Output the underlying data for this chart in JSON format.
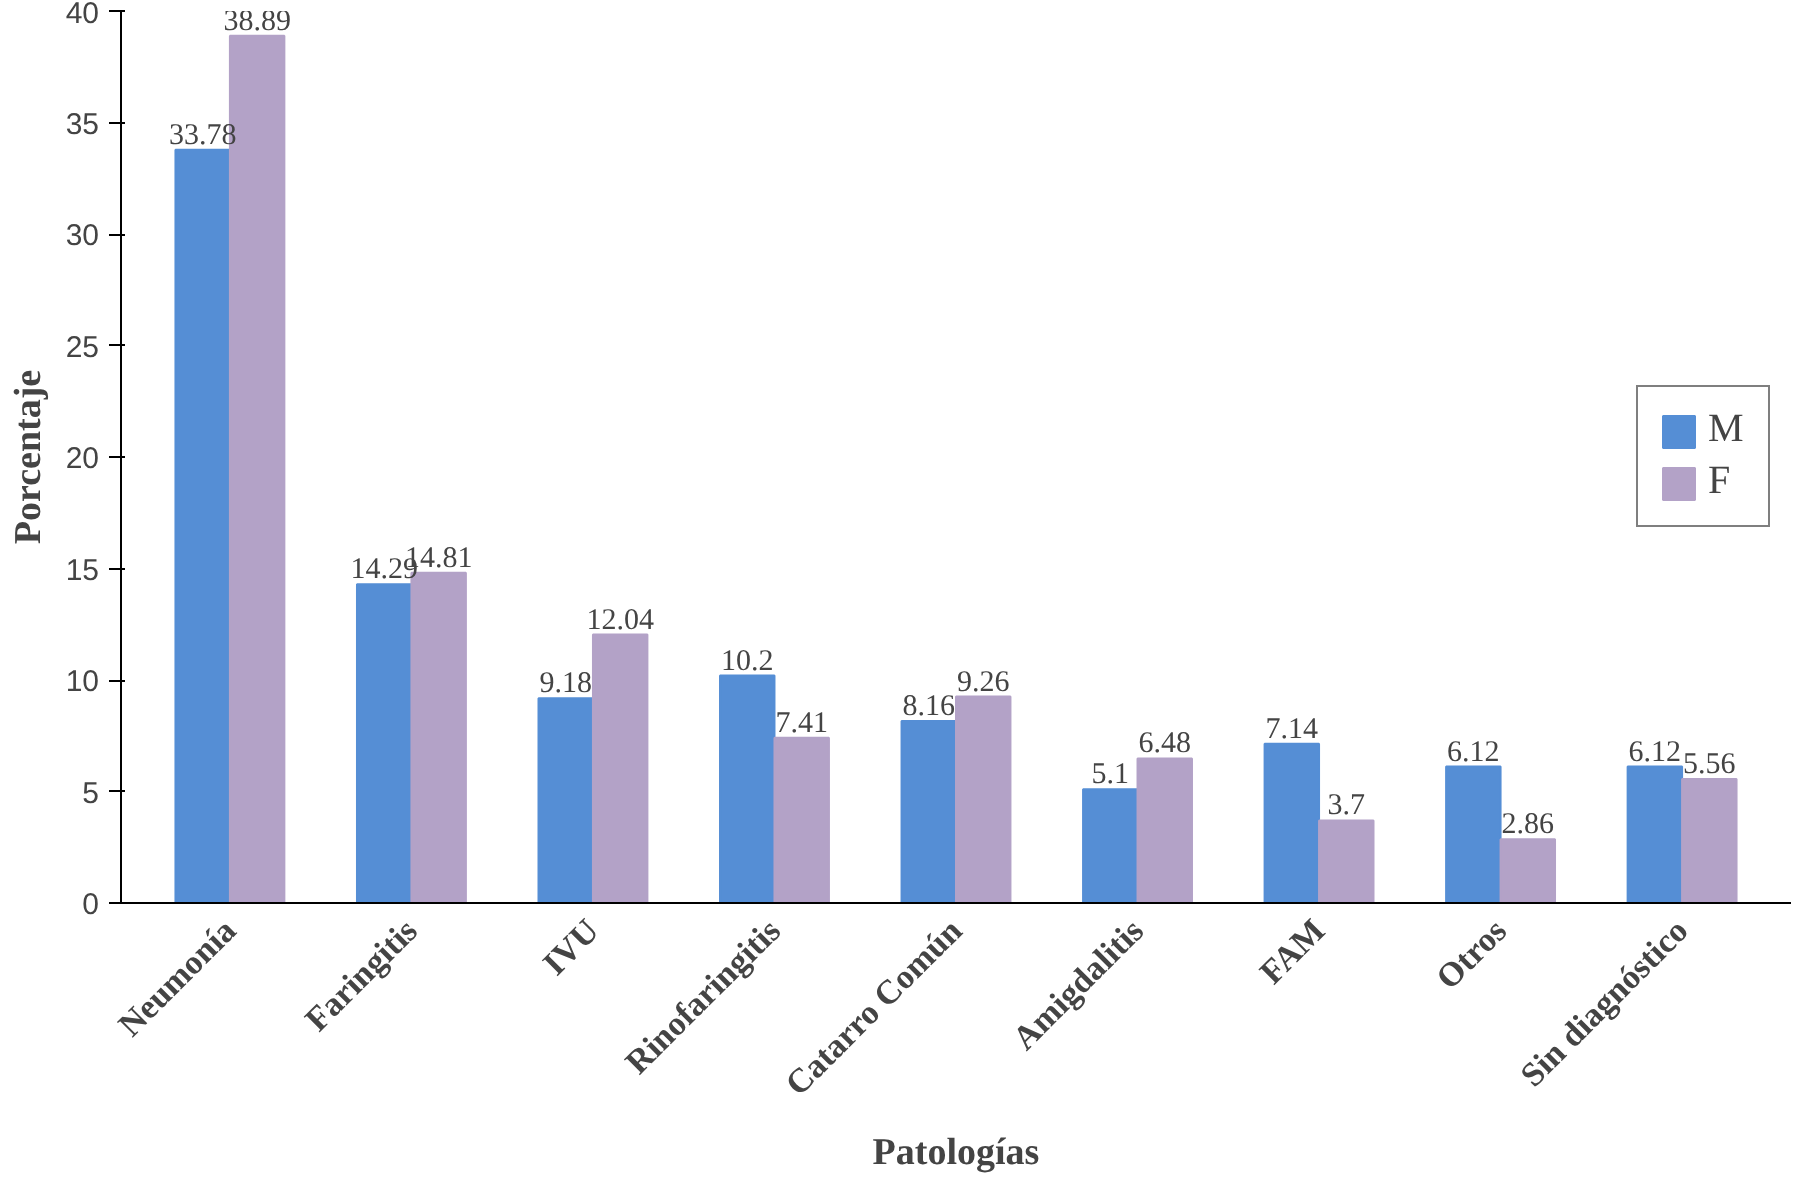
{
  "chart_data": {
    "type": "bar",
    "xlabel": "Patologías",
    "ylabel": "Porcentaje",
    "categories": [
      "Neumonía",
      "Faringitis",
      "IVU",
      "Rinofaringitis",
      "Catarro Común",
      "Amigdalitis",
      "FAM",
      "Otros",
      "Sin diagnóstico"
    ],
    "series": [
      {
        "name": "M",
        "color": "#558ed5",
        "values": [
          33.78,
          14.29,
          9.18,
          10.2,
          8.16,
          5.1,
          7.14,
          6.12,
          6.12
        ]
      },
      {
        "name": "F",
        "color": "#b3a2c7",
        "values": [
          38.89,
          14.81,
          12.04,
          7.41,
          9.26,
          6.48,
          3.7,
          2.86,
          5.56
        ]
      }
    ],
    "ylim": [
      0,
      40
    ],
    "yticks": [
      0,
      5,
      10,
      15,
      20,
      25,
      30,
      35,
      40
    ],
    "data_labels": true,
    "legend": "right",
    "grid": false
  }
}
